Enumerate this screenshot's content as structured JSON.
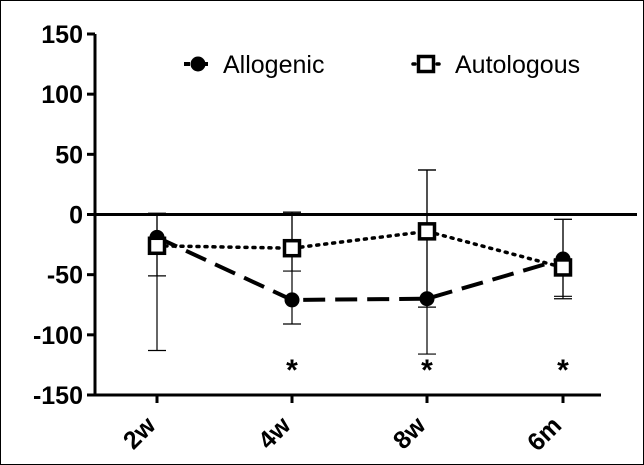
{
  "chart_data": {
    "type": "line",
    "title": "",
    "xlabel": "",
    "ylabel": "",
    "categories": [
      "2w",
      "4w",
      "8w",
      "6m"
    ],
    "ylim": [
      -150,
      150
    ],
    "yticks": [
      150,
      100,
      50,
      0,
      -50,
      -100,
      -150
    ],
    "reference_line": 0,
    "legend_position": "top-right",
    "grid": false,
    "series": [
      {
        "name": "Allogenic",
        "marker": "filled-circle",
        "line_style": "dashed",
        "color": "#000000",
        "values": [
          -19,
          -71,
          -70,
          -37
        ],
        "err_low": [
          -51,
          -91,
          -116,
          -70
        ],
        "err_high": [
          1,
          2,
          37,
          -4
        ]
      },
      {
        "name": "Autologous",
        "marker": "open-square",
        "line_style": "dotted",
        "color": "#000000",
        "values": [
          -26,
          -28,
          -14,
          -44
        ],
        "err_low": [
          -113,
          -47,
          -77,
          -68
        ],
        "err_high": [
          1,
          1,
          37,
          -4
        ]
      }
    ],
    "significance": [
      {
        "category": "4w",
        "label": "*"
      },
      {
        "category": "8w",
        "label": "*"
      },
      {
        "category": "6m",
        "label": "*"
      }
    ]
  }
}
